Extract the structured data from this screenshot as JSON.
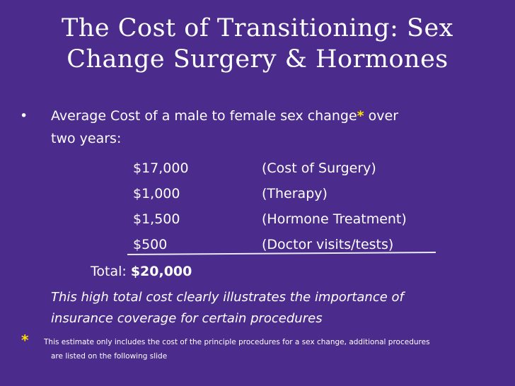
{
  "title_lines": [
    "The Cost of Transitioning: Sex",
    "Change Surgery & Hormones"
  ],
  "bullet": {
    "text_before": "Average Cost of a male to female sex change",
    "marker": "*",
    "text_after": " over",
    "text_line2": "two years:"
  },
  "costs": [
    [
      "$17,000",
      "(Cost of Surgery)"
    ],
    [
      "$1,000",
      "(Therapy)"
    ],
    [
      "$1,500",
      "(Hormone Treatment)"
    ],
    [
      "$500",
      "(Doctor visits/tests)"
    ]
  ],
  "total": {
    "label": "Total: ",
    "amount": "$20,000"
  },
  "note_lines": [
    "This high total cost clearly illustrates the importance of",
    "insurance coverage for certain procedures"
  ],
  "footnote": {
    "marker": "*",
    "line1": "This estimate only includes the cost of the principle procedures for a sex change, additional procedures",
    "line2": "are listed on the following slide"
  }
}
